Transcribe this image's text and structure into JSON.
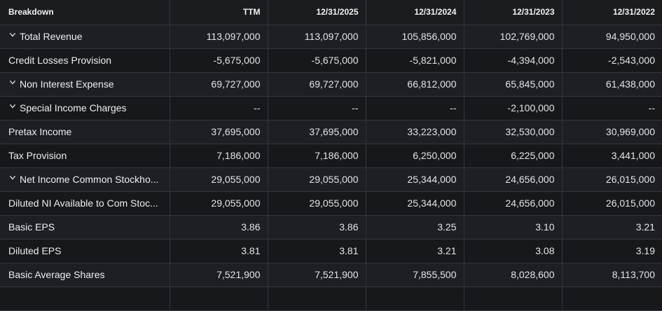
{
  "table": {
    "columns": [
      "Breakdown",
      "TTM",
      "12/31/2025",
      "12/31/2024",
      "12/31/2023",
      "12/31/2022"
    ],
    "rows": [
      {
        "label": "Total Revenue",
        "expandable": true,
        "values": [
          "113,097,000",
          "113,097,000",
          "105,856,000",
          "102,769,000",
          "94,950,000"
        ]
      },
      {
        "label": "Credit Losses Provision",
        "expandable": false,
        "values": [
          "-5,675,000",
          "-5,675,000",
          "-5,821,000",
          "-4,394,000",
          "-2,543,000"
        ]
      },
      {
        "label": "Non Interest Expense",
        "expandable": true,
        "values": [
          "69,727,000",
          "69,727,000",
          "66,812,000",
          "65,845,000",
          "61,438,000"
        ]
      },
      {
        "label": "Special Income Charges",
        "expandable": true,
        "values": [
          "--",
          "--",
          "--",
          "-2,100,000",
          "--"
        ]
      },
      {
        "label": "Pretax Income",
        "expandable": false,
        "values": [
          "37,695,000",
          "37,695,000",
          "33,223,000",
          "32,530,000",
          "30,969,000"
        ]
      },
      {
        "label": "Tax Provision",
        "expandable": false,
        "values": [
          "7,186,000",
          "7,186,000",
          "6,250,000",
          "6,225,000",
          "3,441,000"
        ]
      },
      {
        "label": "Net Income Common Stockho...",
        "expandable": true,
        "values": [
          "29,055,000",
          "29,055,000",
          "25,344,000",
          "24,656,000",
          "26,015,000"
        ]
      },
      {
        "label": "Diluted NI Available to Com Stoc...",
        "expandable": false,
        "values": [
          "29,055,000",
          "29,055,000",
          "25,344,000",
          "24,656,000",
          "26,015,000"
        ]
      },
      {
        "label": "Basic EPS",
        "expandable": false,
        "values": [
          "3.86",
          "3.86",
          "3.25",
          "3.10",
          "3.21"
        ]
      },
      {
        "label": "Diluted EPS",
        "expandable": false,
        "values": [
          "3.81",
          "3.81",
          "3.21",
          "3.08",
          "3.19"
        ]
      },
      {
        "label": "Basic Average Shares",
        "expandable": false,
        "values": [
          "7,521,900",
          "7,521,900",
          "7,855,500",
          "8,028,600",
          "8,113,700"
        ]
      },
      {
        "label": "",
        "expandable": false,
        "values": [
          "",
          "",
          "",
          "",
          ""
        ]
      }
    ]
  },
  "icons": {
    "expand": "chevron-down-icon"
  },
  "colors": {
    "background": "#141518",
    "row_odd": "#1e1f24",
    "row_even": "#17181c",
    "border": "#34363c",
    "text": "#e3e4e7"
  }
}
